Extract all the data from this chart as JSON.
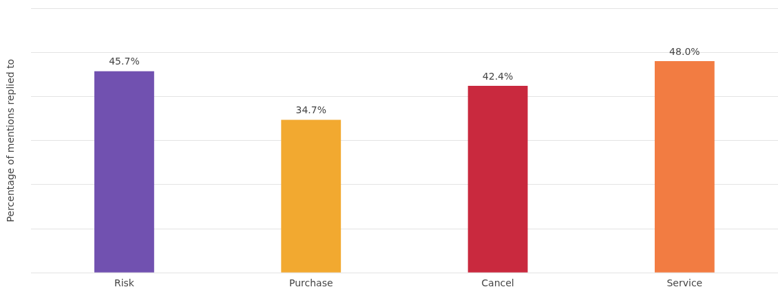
{
  "chart_data": {
    "type": "bar",
    "ylabel": "Percentage of mentions replied to",
    "categories": [
      "Risk",
      "Purchase",
      "Cancel",
      "Service"
    ],
    "values": [
      45.7,
      34.7,
      42.4,
      48.0
    ],
    "colors": [
      "#7151b0",
      "#f2a930",
      "#c9293e",
      "#f27c42"
    ],
    "value_labels": [
      "45.7%",
      "34.7%",
      "42.4%",
      "48.0%"
    ],
    "ylim": [
      0,
      60
    ],
    "yticks": [
      {
        "value": 0,
        "label": null
      },
      {
        "value": 10,
        "label": null
      },
      {
        "value": 20,
        "label": null
      },
      {
        "value": 30,
        "label": null
      },
      {
        "value": 40,
        "label": null
      },
      {
        "value": 50,
        "label": null
      },
      {
        "value": 60,
        "label": null
      }
    ],
    "tick_labels": "x",
    "grid": "y",
    "legend": false
  }
}
